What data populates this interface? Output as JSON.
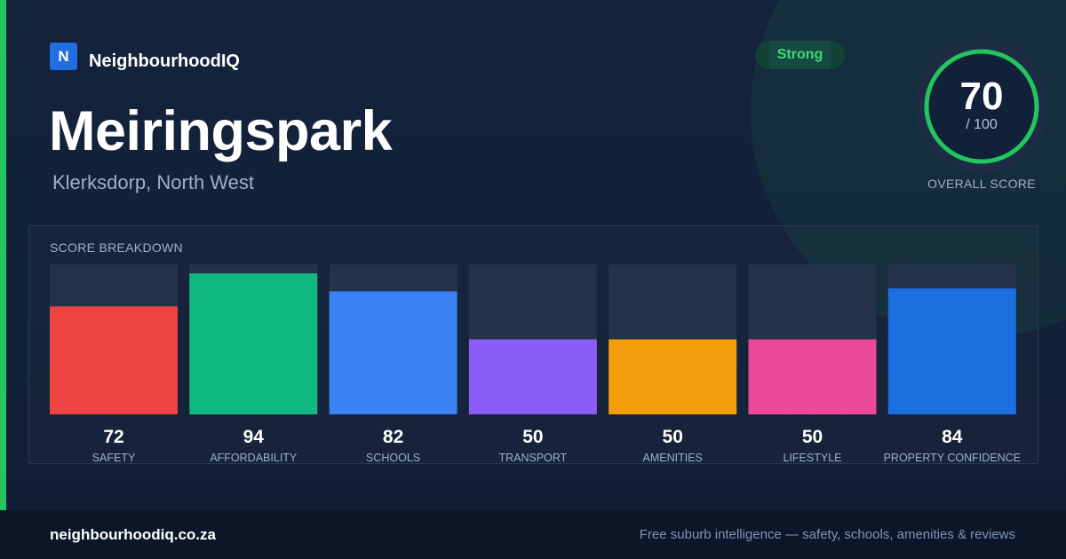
{
  "brand": {
    "logo_letter": "N",
    "name": "NeighbourhoodIQ"
  },
  "suburb": {
    "name": "Meiringspark",
    "location": "Klerksdorp, North West"
  },
  "rating": {
    "label": "Strong",
    "score": "70",
    "out_of": "/ 100",
    "score_fraction": 0.7,
    "caption": "OVERALL SCORE"
  },
  "breakdown": {
    "title": "SCORE BREAKDOWN"
  },
  "colors": {
    "accent": "#22c55e",
    "track": "#24324a"
  },
  "chart_data": {
    "type": "bar",
    "categories": [
      "SAFETY",
      "AFFORDABILITY",
      "SCHOOLS",
      "TRANSPORT",
      "AMENITIES",
      "LIFESTYLE",
      "PROPERTY CONFIDENCE"
    ],
    "values": [
      72,
      94,
      82,
      50,
      50,
      50,
      84
    ],
    "colors": [
      "#ef4444",
      "#10b981",
      "#3b82f6",
      "#8b5cf6",
      "#f59e0b",
      "#ec4899",
      "#1d6fe0"
    ],
    "ylim": [
      0,
      100
    ],
    "grid": false
  },
  "footer": {
    "url": "neighbourhoodiq.co.za",
    "tagline": "Free suburb intelligence — safety, schools, amenities & reviews"
  }
}
